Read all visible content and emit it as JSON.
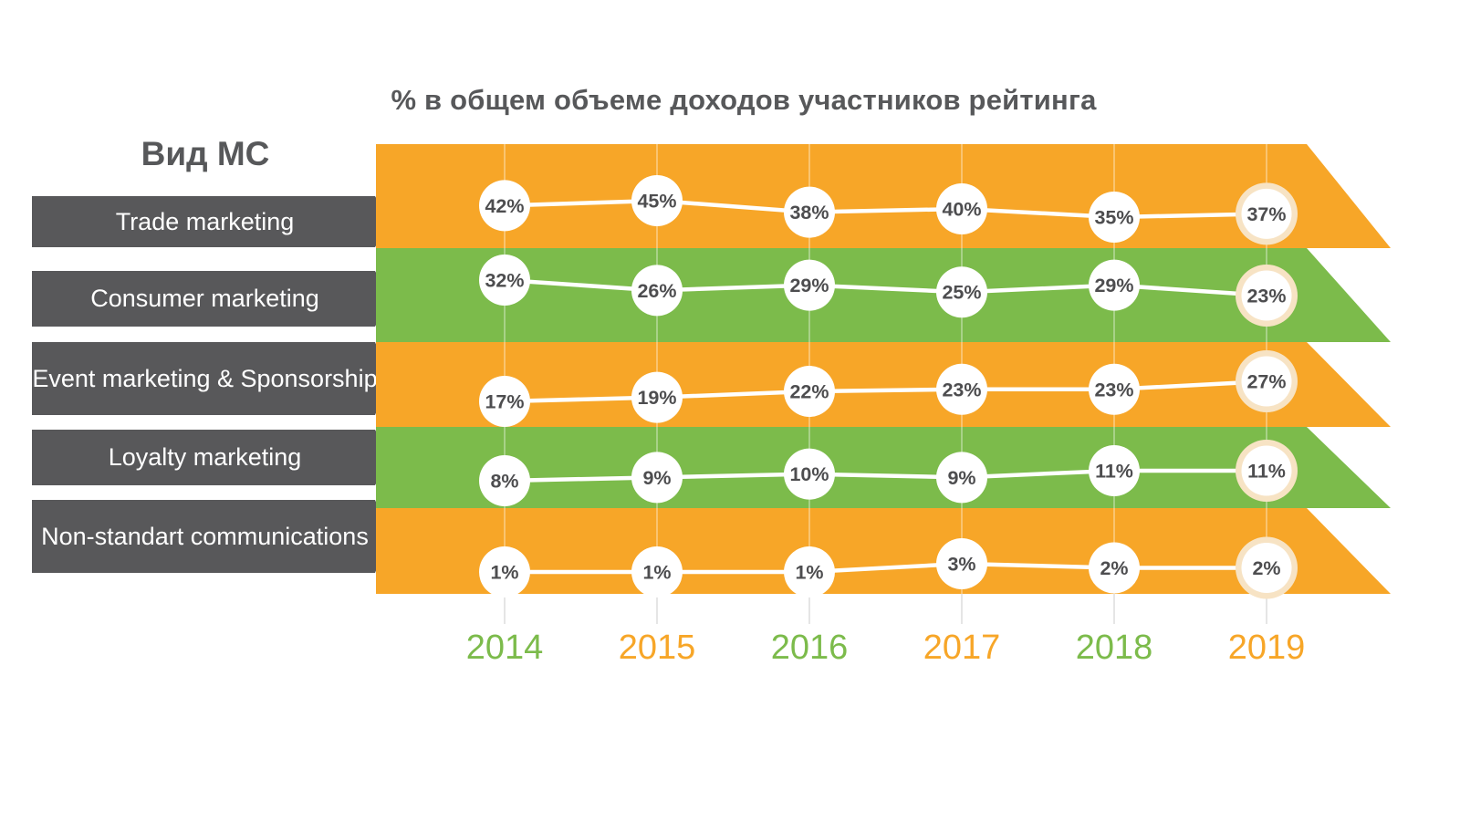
{
  "title": "% в общем объеме доходов участников рейтинга",
  "categories_panel": {
    "header": "Вид МС",
    "items": [
      "Trade marketing",
      "Consumer marketing",
      "Event marketing & Sponsorship",
      "Loyalty marketing",
      "Non-standart communications"
    ]
  },
  "chart_data": {
    "type": "line",
    "x": [
      "2014",
      "2015",
      "2016",
      "2017",
      "2018",
      "2019"
    ],
    "unit": "%",
    "series": [
      {
        "name": "Trade marketing",
        "values": [
          42,
          45,
          38,
          40,
          35,
          37
        ],
        "band_color": "#F7A628"
      },
      {
        "name": "Consumer marketing",
        "values": [
          32,
          26,
          29,
          25,
          29,
          23
        ],
        "band_color": "#7CBB4B"
      },
      {
        "name": "Event marketing & Sponsorship",
        "values": [
          17,
          19,
          22,
          23,
          23,
          27
        ],
        "band_color": "#F7A628"
      },
      {
        "name": "Loyalty marketing",
        "values": [
          8,
          9,
          10,
          9,
          11,
          11
        ],
        "band_color": "#7CBB4B"
      },
      {
        "name": "Non-standart communications",
        "values": [
          1,
          1,
          1,
          3,
          2,
          2
        ],
        "band_color": "#F7A628"
      }
    ],
    "highlight_x": "2019",
    "x_label_colors": [
      "#7CBB4B",
      "#F7A628",
      "#7CBB4B",
      "#F7A628",
      "#7CBB4B",
      "#F7A628"
    ],
    "legend_position": "none",
    "grid": "vertical",
    "colors": {
      "orange": "#F7A628",
      "green": "#7CBB4B",
      "category_label_bg": "#58585A",
      "title_text": "#57585A",
      "value_text": "#4D4D4F",
      "marker_fill": "#FFFFFF",
      "line": "#FFFFFF",
      "highlight_ring": "#F7E3C4",
      "grid_on_band": "rgba(255,255,255,0.45)",
      "grid_below": "#DCDCDC"
    }
  }
}
